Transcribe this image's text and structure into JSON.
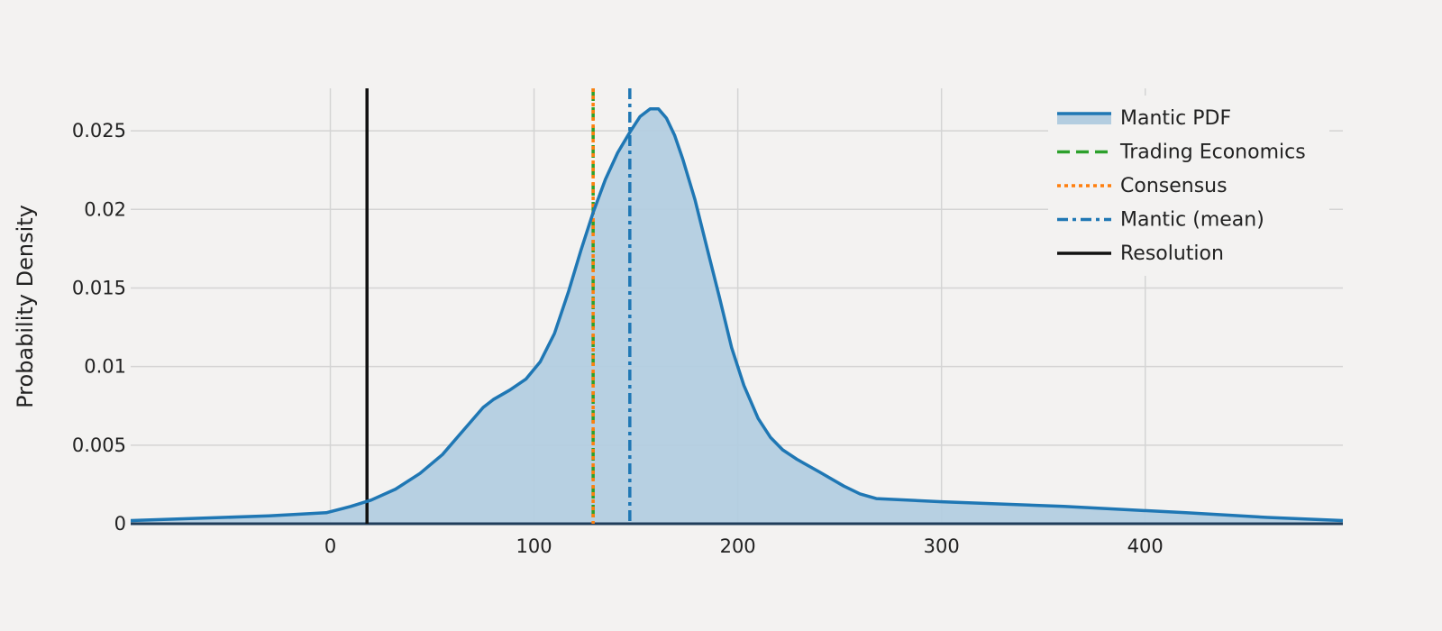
{
  "chart_data": {
    "type": "area",
    "title": "",
    "xlabel": "",
    "ylabel": "Probability Density",
    "xlim": [
      -98,
      497
    ],
    "ylim": [
      0,
      0.0277
    ],
    "x_ticks": [
      0,
      100,
      200,
      300,
      400
    ],
    "x_tick_labels": [
      "0",
      "100",
      "200",
      "300",
      "400"
    ],
    "y_ticks": [
      0,
      0.005,
      0.01,
      0.015,
      0.02,
      0.025
    ],
    "y_tick_labels": [
      "0",
      "0.005",
      "0.01",
      "0.015",
      "0.02",
      "0.025"
    ],
    "grid": true,
    "legend_position": "top-right",
    "colors": {
      "pdf_line": "#1f77b4",
      "pdf_fill": "#b3cde0",
      "trading_economics": "#2ca02c",
      "consensus": "#ff7f0e",
      "mantic_mean": "#1f77b4",
      "resolution": "#111111"
    },
    "series": [
      {
        "name": "Mantic PDF",
        "style": "line+fill",
        "x": [
          -98,
          -30,
          -2,
          10,
          20,
          32,
          44,
          55,
          65,
          75,
          80,
          88,
          96,
          103,
          110,
          117,
          123,
          129,
          135,
          141,
          147,
          152,
          157,
          161,
          165,
          169,
          173,
          179,
          185,
          191,
          197,
          203,
          210,
          216,
          222,
          229,
          240,
          252,
          260,
          268,
          300,
          360,
          420,
          460,
          497
        ],
        "y": [
          0.0002,
          0.0005,
          0.0007,
          0.0011,
          0.0015,
          0.0022,
          0.0032,
          0.0044,
          0.0059,
          0.0074,
          0.0079,
          0.0085,
          0.0092,
          0.0103,
          0.0121,
          0.0148,
          0.0174,
          0.0198,
          0.0219,
          0.0236,
          0.0249,
          0.0259,
          0.0264,
          0.0264,
          0.0258,
          0.0247,
          0.0232,
          0.0206,
          0.0175,
          0.0144,
          0.0112,
          0.0088,
          0.0067,
          0.0055,
          0.0047,
          0.0041,
          0.0033,
          0.0024,
          0.0019,
          0.0016,
          0.0014,
          0.0011,
          0.0007,
          0.0004,
          0.0002
        ]
      },
      {
        "name": "Trading Economics",
        "style": "vline-dash",
        "x": 129
      },
      {
        "name": "Consensus",
        "style": "vline-dot",
        "x": 129
      },
      {
        "name": "Mantic (mean)",
        "style": "vline-dashdot",
        "x": 147
      },
      {
        "name": "Resolution",
        "style": "vline-solid",
        "x": 18
      }
    ]
  }
}
